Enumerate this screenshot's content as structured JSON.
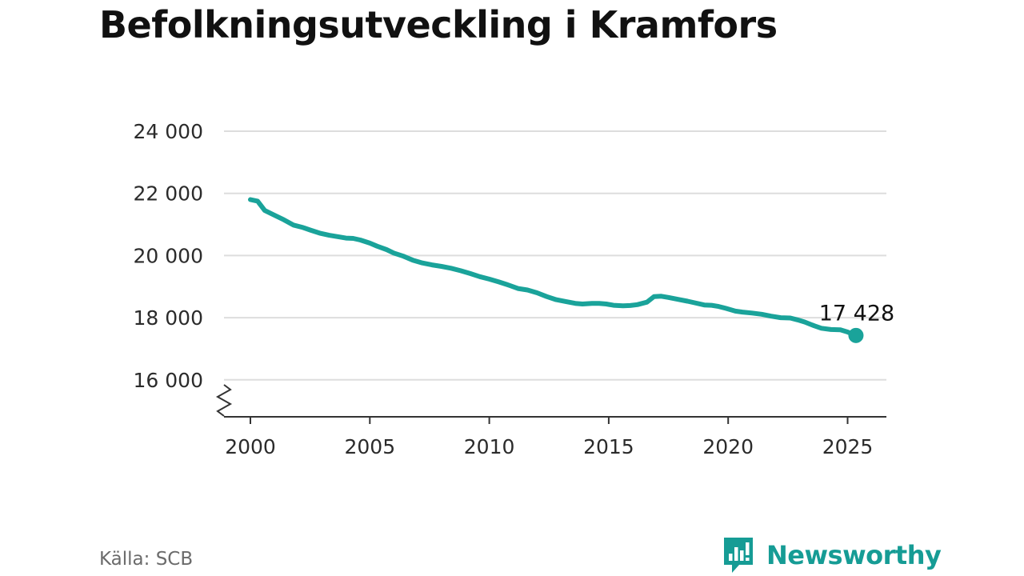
{
  "title": "Befolkningsutveckling i Kramfors",
  "source": "Källa: SCB",
  "brand": {
    "name": "Newsworthy",
    "icon": "newsworthy-logo-icon",
    "color": "#169c95"
  },
  "colors": {
    "line": "#1aa39a",
    "grid": "#dddddd",
    "axis": "#333333"
  },
  "chart_data": {
    "type": "line",
    "title": "Befolkningsutveckling i Kramfors",
    "xlabel": "",
    "ylabel": "",
    "xlim": [
      1999.5,
      2026.5
    ],
    "ylim": [
      15000,
      24500
    ],
    "y_axis_break": true,
    "grid": "horizontal",
    "x_ticks": [
      2000,
      2005,
      2010,
      2015,
      2020,
      2025
    ],
    "x_tick_labels": [
      "2000",
      "2005",
      "2010",
      "2015",
      "2020",
      "2025"
    ],
    "y_ticks": [
      16000,
      18000,
      20000,
      22000,
      24000
    ],
    "y_tick_labels": [
      "16 000",
      "18 000",
      "20 000",
      "22 000",
      "24 000"
    ],
    "end_label": "17 428",
    "series": [
      {
        "x": [
          2000.0,
          2000.3,
          2000.6,
          2001.0,
          2001.4,
          2001.8,
          2002.2,
          2002.5,
          2002.9,
          2003.3,
          2003.7,
          2004.0,
          2004.3,
          2004.6,
          2005.0,
          2005.3,
          2005.7,
          2006.0,
          2006.4,
          2006.8,
          2007.2,
          2007.6,
          2008.0,
          2008.4,
          2008.8,
          2009.2,
          2009.6,
          2010.0,
          2010.4,
          2010.8,
          2011.2,
          2011.6,
          2012.0,
          2012.4,
          2012.8,
          2013.2,
          2013.6,
          2013.9,
          2014.3,
          2014.6,
          2014.9,
          2015.2,
          2015.6,
          2015.9,
          2016.2,
          2016.6,
          2016.9,
          2017.2,
          2017.5,
          2017.9,
          2018.3,
          2018.6,
          2019.0,
          2019.3,
          2019.6,
          2019.9,
          2020.3,
          2020.6,
          2021.0,
          2021.4,
          2021.8,
          2022.2,
          2022.6,
          2022.9,
          2023.2,
          2023.6,
          2023.9,
          2024.3,
          2024.7,
          2025.0,
          2025.2,
          2025.35
        ],
        "values": [
          21800,
          21750,
          21450,
          21300,
          21150,
          20980,
          20900,
          20820,
          20720,
          20650,
          20600,
          20560,
          20550,
          20500,
          20400,
          20300,
          20190,
          20080,
          19980,
          19850,
          19760,
          19700,
          19650,
          19590,
          19510,
          19420,
          19320,
          19240,
          19150,
          19050,
          18940,
          18890,
          18800,
          18680,
          18580,
          18520,
          18460,
          18440,
          18460,
          18460,
          18440,
          18400,
          18380,
          18390,
          18420,
          18500,
          18680,
          18690,
          18650,
          18590,
          18530,
          18480,
          18410,
          18400,
          18360,
          18300,
          18210,
          18180,
          18150,
          18110,
          18050,
          18000,
          17990,
          17930,
          17860,
          17740,
          17660,
          17620,
          17610,
          17540,
          17470,
          17428
        ]
      }
    ]
  }
}
